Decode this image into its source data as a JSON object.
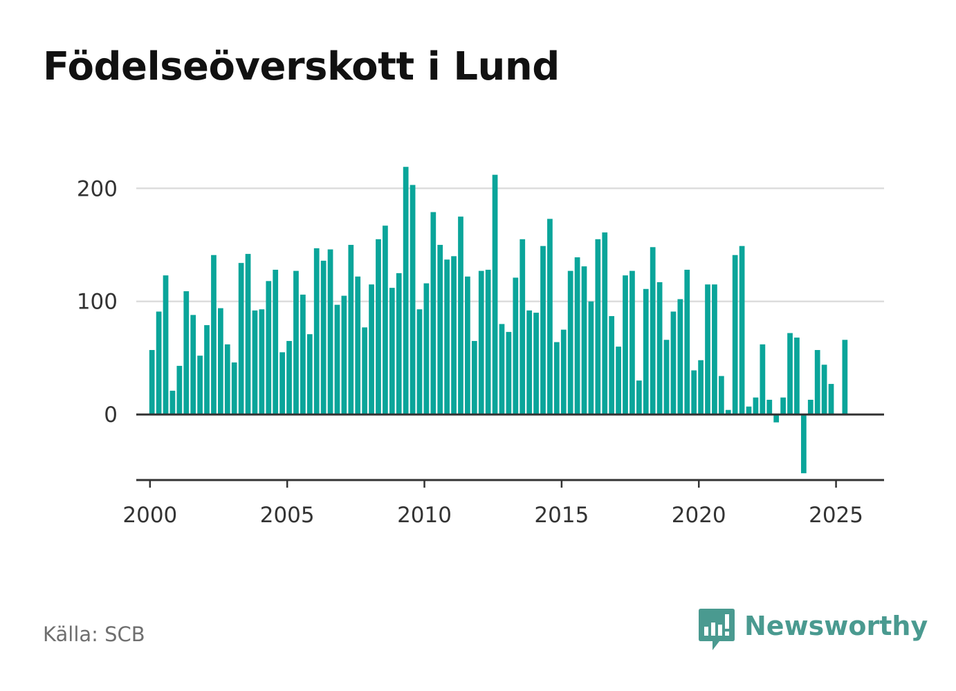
{
  "title": "Födelseöverskott i Lund",
  "source": "Källa: SCB",
  "brand": {
    "name": "Newsworthy",
    "icon": "newsworthy-logo-icon",
    "color": "#4a9a90"
  },
  "colors": {
    "bar": "#0aa59a",
    "axis": "#333333",
    "grid": "#dddddd"
  },
  "chart_data": {
    "type": "bar",
    "title": "Födelseöverskott i Lund",
    "xlabel": "",
    "ylabel": "",
    "x_ticks": [
      "2000",
      "2005",
      "2010",
      "2015",
      "2020",
      "2025"
    ],
    "y_ticks": [
      "0",
      "100",
      "200"
    ],
    "ylim": [
      -58,
      220
    ],
    "xlim": [
      1999.5,
      2026.75
    ],
    "grid": true,
    "legend": "none",
    "series": [
      {
        "frequency": "quarterly",
        "start": "2000-Q1",
        "values": [
          57,
          91,
          123,
          21,
          43,
          109,
          88,
          52,
          79,
          141,
          94,
          62,
          46,
          134,
          142,
          92,
          93,
          118,
          128,
          55,
          65,
          127,
          106,
          71,
          147,
          136,
          146,
          97,
          105,
          150,
          122,
          77,
          115,
          155,
          167,
          112,
          125,
          219,
          203,
          93,
          116,
          179,
          150,
          137,
          140,
          175,
          122,
          65,
          127,
          128,
          212,
          80,
          73,
          121,
          155,
          92,
          90,
          149,
          173,
          64,
          75,
          127,
          139,
          131,
          100,
          155,
          161,
          87,
          60,
          123,
          127,
          30,
          111,
          148,
          117,
          66,
          91,
          102,
          128,
          39,
          48,
          115,
          115,
          34,
          4,
          141,
          149,
          7,
          15,
          62,
          13,
          -7,
          15,
          72,
          68,
          -52,
          13,
          57,
          44,
          27,
          0,
          66
        ]
      }
    ]
  }
}
